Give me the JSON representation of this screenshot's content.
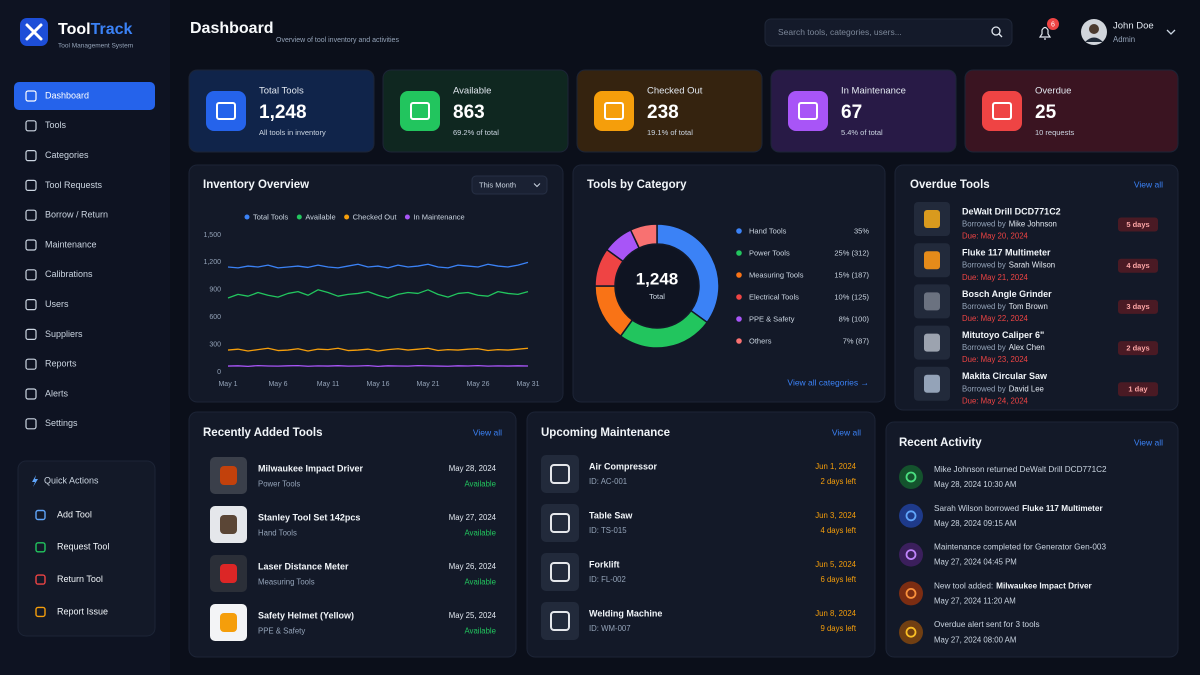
{
  "brand": {
    "name_a": "Tool",
    "name_b": "Track",
    "tagline": "Tool Management System"
  },
  "nav": [
    "Dashboard",
    "Tools",
    "Categories",
    "Tool Requests",
    "Borrow / Return",
    "Maintenance",
    "Calibrations",
    "Users",
    "Suppliers",
    "Reports",
    "Alerts",
    "Settings"
  ],
  "quick_actions": {
    "title": "Quick Actions",
    "items": [
      "Add Tool",
      "Request Tool",
      "Return Tool",
      "Report Issue"
    ]
  },
  "header": {
    "title": "Dashboard",
    "subtitle": "Overview of tool inventory and activities",
    "search_placeholder": "Search tools, categories, users...",
    "notifications": 6,
    "user_name": "John Doe",
    "user_role": "Admin"
  },
  "stats": [
    {
      "label": "Total Tools",
      "value": "1,248",
      "note": "All tools in inventory"
    },
    {
      "label": "Available",
      "value": "863",
      "note": "69.2% of total"
    },
    {
      "label": "Checked Out",
      "value": "238",
      "note": "19.1% of total"
    },
    {
      "label": "In Maintenance",
      "value": "67",
      "note": "5.4% of total"
    },
    {
      "label": "Overdue",
      "value": "25",
      "note": "10 requests"
    }
  ],
  "chart_data": [
    {
      "type": "line",
      "title": "Inventory Overview",
      "period": "This Month",
      "categories": [
        "May 1",
        null,
        null,
        null,
        null,
        "May 6",
        null,
        null,
        null,
        null,
        "May 11",
        null,
        null,
        null,
        null,
        "May 16",
        null,
        null,
        null,
        null,
        "May 21",
        null,
        null,
        null,
        null,
        "May 26",
        null,
        null,
        null,
        null,
        "May 31"
      ],
      "series": [
        {
          "name": "Total Tools",
          "color": "#3b82f6",
          "values": [
            1150,
            1140,
            1160,
            1150,
            1170,
            1140,
            1150,
            1160,
            1145,
            1170,
            1150,
            1140,
            1160,
            1180,
            1150,
            1160,
            1140,
            1170,
            1150,
            1160,
            1180,
            1150,
            1140,
            1170,
            1160,
            1150,
            1180,
            1160,
            1150,
            1170,
            1200
          ]
        },
        {
          "name": "Available",
          "color": "#22c55e",
          "values": [
            810,
            850,
            830,
            870,
            840,
            820,
            860,
            880,
            840,
            900,
            870,
            830,
            850,
            860,
            880,
            840,
            810,
            850,
            870,
            860,
            900,
            850,
            820,
            860,
            870,
            840,
            830,
            880,
            860,
            850,
            880
          ]
        },
        {
          "name": "Checked Out",
          "color": "#f59e0b",
          "values": [
            240,
            250,
            230,
            245,
            260,
            235,
            240,
            255,
            230,
            250,
            245,
            260,
            235,
            240,
            250,
            230,
            245,
            255,
            240,
            250,
            260,
            235,
            245,
            240,
            250,
            255,
            235,
            245,
            240,
            250,
            260
          ]
        },
        {
          "name": "In Maintenance",
          "color": "#a855f7",
          "values": [
            65,
            68,
            62,
            70,
            66,
            64,
            68,
            70,
            63,
            67,
            65,
            69,
            64,
            66,
            70,
            62,
            68,
            66,
            64,
            70,
            67,
            65,
            63,
            68,
            66,
            70,
            64,
            67,
            65,
            68,
            66
          ]
        }
      ],
      "ylim": [
        0,
        1500
      ],
      "yticks": [
        0,
        300,
        600,
        900,
        {
          "value": 1200,
          "label": "1,200"
        },
        {
          "value": 1500,
          "label": "1,500"
        }
      ],
      "grid": false,
      "legend": "top"
    },
    {
      "type": "pie",
      "title": "Tools by Category",
      "categories": [
        "Hand Tools",
        "Power Tools",
        "Measuring Tools",
        "Electrical Tools",
        "PPE & Safety",
        "Others"
      ],
      "values": [
        35,
        25,
        15,
        10,
        8,
        7
      ],
      "value_labels": [
        "35%",
        "25% (312)",
        "15% (187)",
        "10% (125)",
        "8% (100)",
        "7% (87)"
      ],
      "colors": [
        "#3b82f6",
        "#22c55e",
        "#f97316",
        "#ef4444",
        "#a855f7",
        "#f87171"
      ],
      "center_value": "1,248",
      "center_label": "Total",
      "link": "View all categories →"
    }
  ],
  "overdue": {
    "title": "Overdue Tools",
    "link": "View all",
    "borrowed_prefix": "Borrowed by",
    "items": [
      {
        "name": "DeWalt Drill DCD771C2",
        "borrower": "Mike Johnson",
        "due": "Due: May 20, 2024",
        "badge": "5 days"
      },
      {
        "name": "Fluke 117 Multimeter",
        "borrower": "Sarah Wilson",
        "due": "Due: May 21, 2024",
        "badge": "4 days"
      },
      {
        "name": "Bosch Angle Grinder",
        "borrower": "Tom Brown",
        "due": "Due: May 22, 2024",
        "badge": "3 days"
      },
      {
        "name": "Mitutoyo Caliper 6\"",
        "borrower": "Alex Chen",
        "due": "Due: May 23, 2024",
        "badge": "2 days"
      },
      {
        "name": "Makita Circular Saw",
        "borrower": "David Lee",
        "due": "Due: May 24, 2024",
        "badge": "1 day"
      }
    ]
  },
  "recent_tools": {
    "title": "Recently Added Tools",
    "link": "View all",
    "items": [
      {
        "name": "Milwaukee Impact Driver",
        "category": "Power Tools",
        "date": "May 28, 2024",
        "status": "Available"
      },
      {
        "name": "Stanley Tool Set 142pcs",
        "category": "Hand Tools",
        "date": "May 27, 2024",
        "status": "Available"
      },
      {
        "name": "Laser Distance Meter",
        "category": "Measuring Tools",
        "date": "May 26, 2024",
        "status": "Available"
      },
      {
        "name": "Safety Helmet (Yellow)",
        "category": "PPE & Safety",
        "date": "May 25, 2024",
        "status": "Available"
      }
    ]
  },
  "maintenance": {
    "title": "Upcoming Maintenance",
    "link": "View all",
    "items": [
      {
        "name": "Air Compressor",
        "id": "ID: AC-001",
        "date": "Jun 1, 2024",
        "left": "2 days left"
      },
      {
        "name": "Table Saw",
        "id": "ID: TS-015",
        "date": "Jun 3, 2024",
        "left": "4 days left"
      },
      {
        "name": "Forklift",
        "id": "ID: FL-002",
        "date": "Jun 5, 2024",
        "left": "6 days left"
      },
      {
        "name": "Welding Machine",
        "id": "ID: WM-007",
        "date": "Jun 8, 2024",
        "left": "9 days left"
      }
    ]
  },
  "activity": {
    "title": "Recent Activity",
    "link": "View all",
    "items": [
      {
        "text": "Mike Johnson returned DeWalt Drill DCD771C2",
        "time": "May 28, 2024 10:30 AM"
      },
      {
        "text": "Sarah Wilson borrowed",
        "strong": "Fluke 117 Multimeter",
        "time": "May 28, 2024 09:15 AM"
      },
      {
        "text": "Maintenance completed for Generator Gen-003",
        "time": "May 27, 2024 04:45 PM"
      },
      {
        "text": "New tool added:",
        "strong": "Milwaukee Impact Driver",
        "time": "May 27, 2024 11:20 AM"
      },
      {
        "text": "Overdue alert sent for 3 tools",
        "time": "May 27, 2024 08:00 AM"
      }
    ]
  }
}
